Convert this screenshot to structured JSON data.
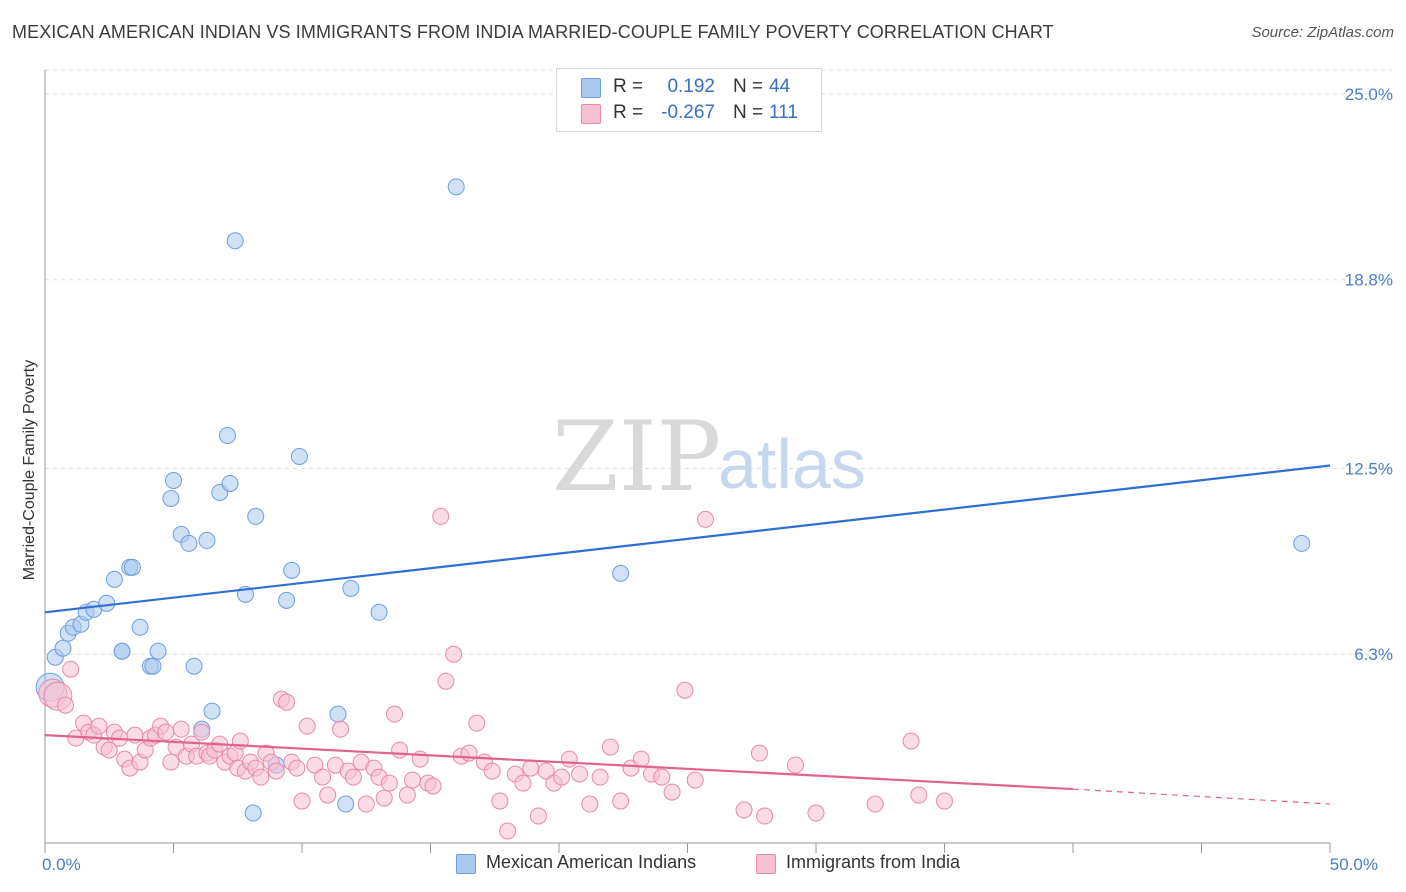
{
  "title": "MEXICAN AMERICAN INDIAN VS IMMIGRANTS FROM INDIA MARRIED-COUPLE FAMILY POVERTY CORRELATION CHART",
  "source": "Source: ZipAtlas.com",
  "watermark": {
    "zip": "ZIP",
    "atlas": "atlas"
  },
  "legend": {
    "rows": [
      {
        "r_label": "R =",
        "r_value": "0.192",
        "n_label": "N =",
        "n_value": "44",
        "color": "#aac8ef",
        "border": "#6d9de0"
      },
      {
        "r_label": "R =",
        "r_value": "-0.267",
        "n_label": "N =",
        "n_value": "111",
        "color": "#f7bfd2",
        "border": "#e888aa"
      }
    ]
  },
  "bottom_legend": [
    {
      "label": "Mexican American Indians",
      "color": "#aac8ef",
      "border": "#6d9de0"
    },
    {
      "label": "Immigrants from India",
      "color": "#f7bfd2",
      "border": "#e888aa"
    }
  ],
  "chart_data": {
    "type": "scatter",
    "title": "MEXICAN AMERICAN INDIAN VS IMMIGRANTS FROM INDIA MARRIED-COUPLE FAMILY POVERTY CORRELATION CHART",
    "xlabel": "",
    "ylabel": "Married-Couple Family Poverty",
    "xlim": [
      0,
      50
    ],
    "ylim": [
      0,
      25.8
    ],
    "x_tick_labels": [
      {
        "value": 0,
        "label": "0.0%"
      },
      {
        "value": 50,
        "label": "50.0%"
      }
    ],
    "y_tick_labels": [
      {
        "value": 6.3,
        "label": "6.3%"
      },
      {
        "value": 12.5,
        "label": "12.5%"
      },
      {
        "value": 18.8,
        "label": "18.8%"
      },
      {
        "value": 25.0,
        "label": "25.0%"
      }
    ],
    "grid": "horizontal-dashed",
    "series": [
      {
        "name": "Mexican American Indians",
        "color": "#6d9de0",
        "fill": "#aac8ef",
        "trend": {
          "x": [
            0,
            50
          ],
          "y": [
            7.7,
            12.6
          ]
        },
        "points": [
          [
            0.2,
            5.2
          ],
          [
            0.4,
            6.2
          ],
          [
            0.7,
            6.5
          ],
          [
            0.9,
            7.0
          ],
          [
            1.1,
            7.2
          ],
          [
            1.4,
            7.3
          ],
          [
            1.6,
            7.7
          ],
          [
            1.9,
            7.8
          ],
          [
            2.4,
            8.0
          ],
          [
            2.7,
            8.8
          ],
          [
            3.0,
            6.4
          ],
          [
            3.0,
            6.4
          ],
          [
            3.3,
            9.2
          ],
          [
            3.4,
            9.2
          ],
          [
            3.7,
            7.2
          ],
          [
            4.1,
            5.9
          ],
          [
            4.2,
            5.9
          ],
          [
            4.4,
            6.4
          ],
          [
            4.9,
            11.5
          ],
          [
            5.0,
            12.1
          ],
          [
            5.3,
            10.3
          ],
          [
            5.6,
            10.0
          ],
          [
            5.8,
            5.9
          ],
          [
            6.1,
            3.8
          ],
          [
            6.3,
            10.1
          ],
          [
            6.5,
            4.4
          ],
          [
            6.8,
            11.7
          ],
          [
            7.1,
            13.6
          ],
          [
            7.2,
            12.0
          ],
          [
            7.4,
            20.1
          ],
          [
            7.8,
            8.3
          ],
          [
            8.2,
            10.9
          ],
          [
            8.1,
            1.0
          ],
          [
            9.0,
            2.6
          ],
          [
            9.4,
            8.1
          ],
          [
            9.6,
            9.1
          ],
          [
            9.9,
            12.9
          ],
          [
            11.4,
            4.3
          ],
          [
            11.7,
            1.3
          ],
          [
            11.9,
            8.5
          ],
          [
            13.0,
            7.7
          ],
          [
            16.0,
            21.9
          ],
          [
            22.4,
            9.0
          ],
          [
            48.9,
            10.0
          ]
        ]
      },
      {
        "name": "Immigrants from India",
        "color": "#e888aa",
        "fill": "#f7bfd2",
        "trend": {
          "x": [
            0,
            40
          ],
          "y": [
            3.6,
            1.8
          ]
        },
        "trend_dashed": {
          "x": [
            40,
            50
          ],
          "y": [
            1.8,
            1.3
          ]
        },
        "points": [
          [
            0.3,
            5.0
          ],
          [
            0.5,
            4.9
          ],
          [
            0.8,
            4.6
          ],
          [
            1.0,
            5.8
          ],
          [
            1.2,
            3.5
          ],
          [
            1.5,
            4.0
          ],
          [
            1.7,
            3.7
          ],
          [
            1.9,
            3.6
          ],
          [
            2.1,
            3.9
          ],
          [
            2.3,
            3.2
          ],
          [
            2.5,
            3.1
          ],
          [
            2.7,
            3.7
          ],
          [
            2.9,
            3.5
          ],
          [
            3.1,
            2.8
          ],
          [
            3.3,
            2.5
          ],
          [
            3.5,
            3.6
          ],
          [
            3.7,
            2.7
          ],
          [
            3.9,
            3.1
          ],
          [
            4.1,
            3.5
          ],
          [
            4.3,
            3.6
          ],
          [
            4.5,
            3.9
          ],
          [
            4.7,
            3.7
          ],
          [
            4.9,
            2.7
          ],
          [
            5.1,
            3.2
          ],
          [
            5.3,
            3.8
          ],
          [
            5.5,
            2.9
          ],
          [
            5.7,
            3.3
          ],
          [
            5.9,
            2.9
          ],
          [
            6.1,
            3.7
          ],
          [
            6.3,
            3.0
          ],
          [
            6.4,
            2.9
          ],
          [
            6.6,
            3.1
          ],
          [
            6.8,
            3.3
          ],
          [
            7.0,
            2.7
          ],
          [
            7.2,
            2.9
          ],
          [
            7.4,
            3.0
          ],
          [
            7.5,
            2.5
          ],
          [
            7.6,
            3.4
          ],
          [
            7.8,
            2.4
          ],
          [
            8.0,
            2.7
          ],
          [
            8.2,
            2.5
          ],
          [
            8.4,
            2.2
          ],
          [
            8.6,
            3.0
          ],
          [
            8.8,
            2.7
          ],
          [
            9.0,
            2.4
          ],
          [
            9.2,
            4.8
          ],
          [
            9.4,
            4.7
          ],
          [
            9.6,
            2.7
          ],
          [
            9.8,
            2.5
          ],
          [
            10.0,
            1.4
          ],
          [
            10.2,
            3.9
          ],
          [
            10.5,
            2.6
          ],
          [
            10.8,
            2.2
          ],
          [
            11.0,
            1.6
          ],
          [
            11.3,
            2.6
          ],
          [
            11.5,
            3.8
          ],
          [
            11.8,
            2.4
          ],
          [
            12.0,
            2.2
          ],
          [
            12.3,
            2.7
          ],
          [
            12.5,
            1.3
          ],
          [
            12.8,
            2.5
          ],
          [
            13.0,
            2.2
          ],
          [
            13.2,
            1.5
          ],
          [
            13.4,
            2.0
          ],
          [
            13.6,
            4.3
          ],
          [
            13.8,
            3.1
          ],
          [
            14.1,
            1.6
          ],
          [
            14.3,
            2.1
          ],
          [
            14.6,
            2.8
          ],
          [
            14.9,
            2.0
          ],
          [
            15.1,
            1.9
          ],
          [
            15.4,
            10.9
          ],
          [
            15.6,
            5.4
          ],
          [
            15.9,
            6.3
          ],
          [
            16.2,
            2.9
          ],
          [
            16.5,
            3.0
          ],
          [
            16.8,
            4.0
          ],
          [
            17.1,
            2.7
          ],
          [
            17.4,
            2.4
          ],
          [
            17.7,
            1.4
          ],
          [
            18.0,
            0.4
          ],
          [
            18.3,
            2.3
          ],
          [
            18.6,
            2.0
          ],
          [
            18.9,
            2.5
          ],
          [
            19.2,
            0.9
          ],
          [
            19.5,
            2.4
          ],
          [
            19.8,
            2.0
          ],
          [
            20.1,
            2.2
          ],
          [
            20.4,
            2.8
          ],
          [
            20.8,
            2.3
          ],
          [
            21.2,
            1.3
          ],
          [
            21.6,
            2.2
          ],
          [
            22.0,
            3.2
          ],
          [
            22.4,
            1.4
          ],
          [
            22.8,
            2.5
          ],
          [
            23.2,
            2.8
          ],
          [
            23.6,
            2.3
          ],
          [
            24.0,
            2.2
          ],
          [
            24.4,
            1.7
          ],
          [
            24.9,
            5.1
          ],
          [
            25.3,
            2.1
          ],
          [
            25.7,
            10.8
          ],
          [
            27.2,
            1.1
          ],
          [
            27.8,
            3.0
          ],
          [
            28.0,
            0.9
          ],
          [
            29.2,
            2.6
          ],
          [
            30.0,
            1.0
          ],
          [
            32.3,
            1.3
          ],
          [
            33.7,
            3.4
          ],
          [
            34.0,
            1.6
          ],
          [
            35.0,
            1.4
          ]
        ]
      }
    ]
  }
}
